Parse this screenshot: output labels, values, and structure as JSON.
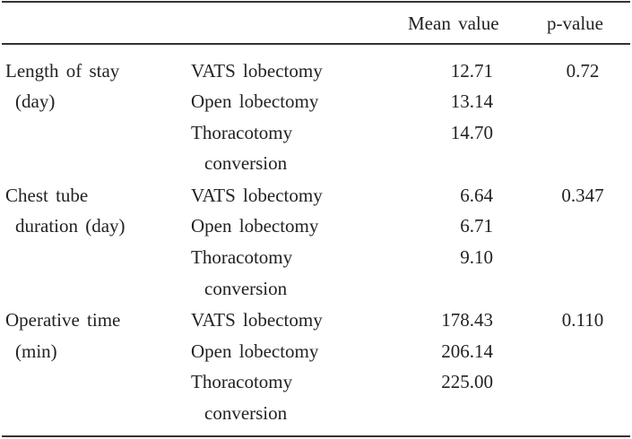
{
  "header": {
    "col_mean": "Mean value",
    "col_p": "p-value"
  },
  "groups": [
    {
      "label_lines": [
        "Length of stay",
        "(day)"
      ],
      "p_value": "0.72",
      "rows": [
        {
          "procedure_lines": [
            "VATS lobectomy"
          ],
          "mean": "12.71"
        },
        {
          "procedure_lines": [
            "Open lobectomy"
          ],
          "mean": "13.14"
        },
        {
          "procedure_lines": [
            "Thoracotomy",
            "conversion"
          ],
          "mean": "14.70"
        }
      ]
    },
    {
      "label_lines": [
        "Chest tube",
        "duration (day)"
      ],
      "p_value": "0.347",
      "rows": [
        {
          "procedure_lines": [
            "VATS lobectomy"
          ],
          "mean": "6.64"
        },
        {
          "procedure_lines": [
            "Open lobectomy"
          ],
          "mean": "6.71"
        },
        {
          "procedure_lines": [
            "Thoracotomy",
            "conversion"
          ],
          "mean": "9.10"
        }
      ]
    },
    {
      "label_lines": [
        "Operative time",
        "(min)"
      ],
      "p_value": "0.110",
      "rows": [
        {
          "procedure_lines": [
            "VATS lobectomy"
          ],
          "mean": "178.43"
        },
        {
          "procedure_lines": [
            "Open lobectomy"
          ],
          "mean": "206.14"
        },
        {
          "procedure_lines": [
            "Thoracotomy",
            "conversion"
          ],
          "mean": "225.00"
        }
      ]
    }
  ]
}
